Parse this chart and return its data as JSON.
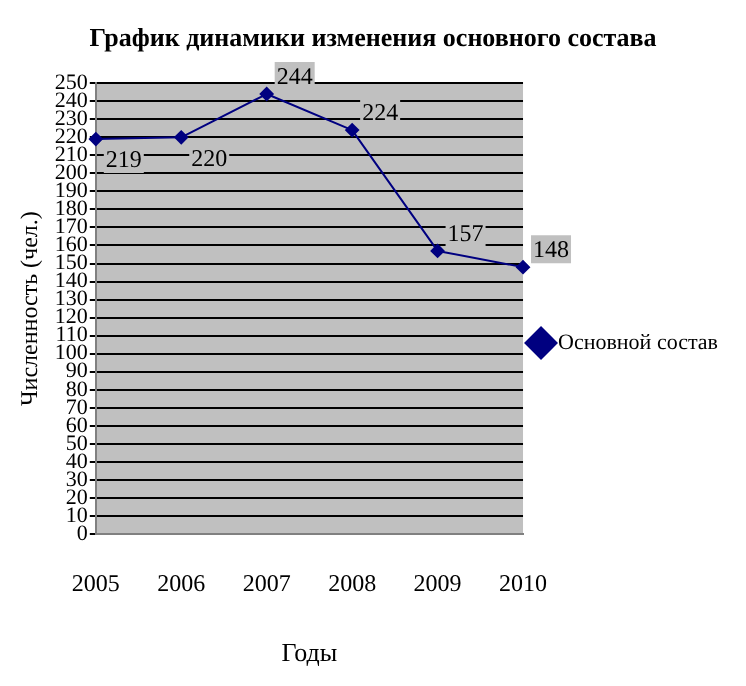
{
  "chart_data": {
    "type": "line",
    "title": "График динамики изменения основного состава",
    "xlabel": "Годы",
    "ylabel": "Численность (чел.)",
    "categories": [
      "2005",
      "2006",
      "2007",
      "2008",
      "2009",
      "2010"
    ],
    "series": [
      {
        "name": "Основной состав",
        "color": "#000080",
        "values": [
          219,
          220,
          244,
          224,
          157,
          148
        ]
      }
    ],
    "ylim": [
      0,
      250
    ],
    "yticks": [
      0,
      10,
      20,
      30,
      40,
      50,
      60,
      70,
      80,
      90,
      100,
      110,
      120,
      130,
      140,
      150,
      160,
      170,
      180,
      190,
      200,
      210,
      220,
      230,
      240,
      250
    ],
    "grid": "y",
    "legend": "right",
    "marker": "diamond",
    "line_style": "solid",
    "data_labels": true
  }
}
